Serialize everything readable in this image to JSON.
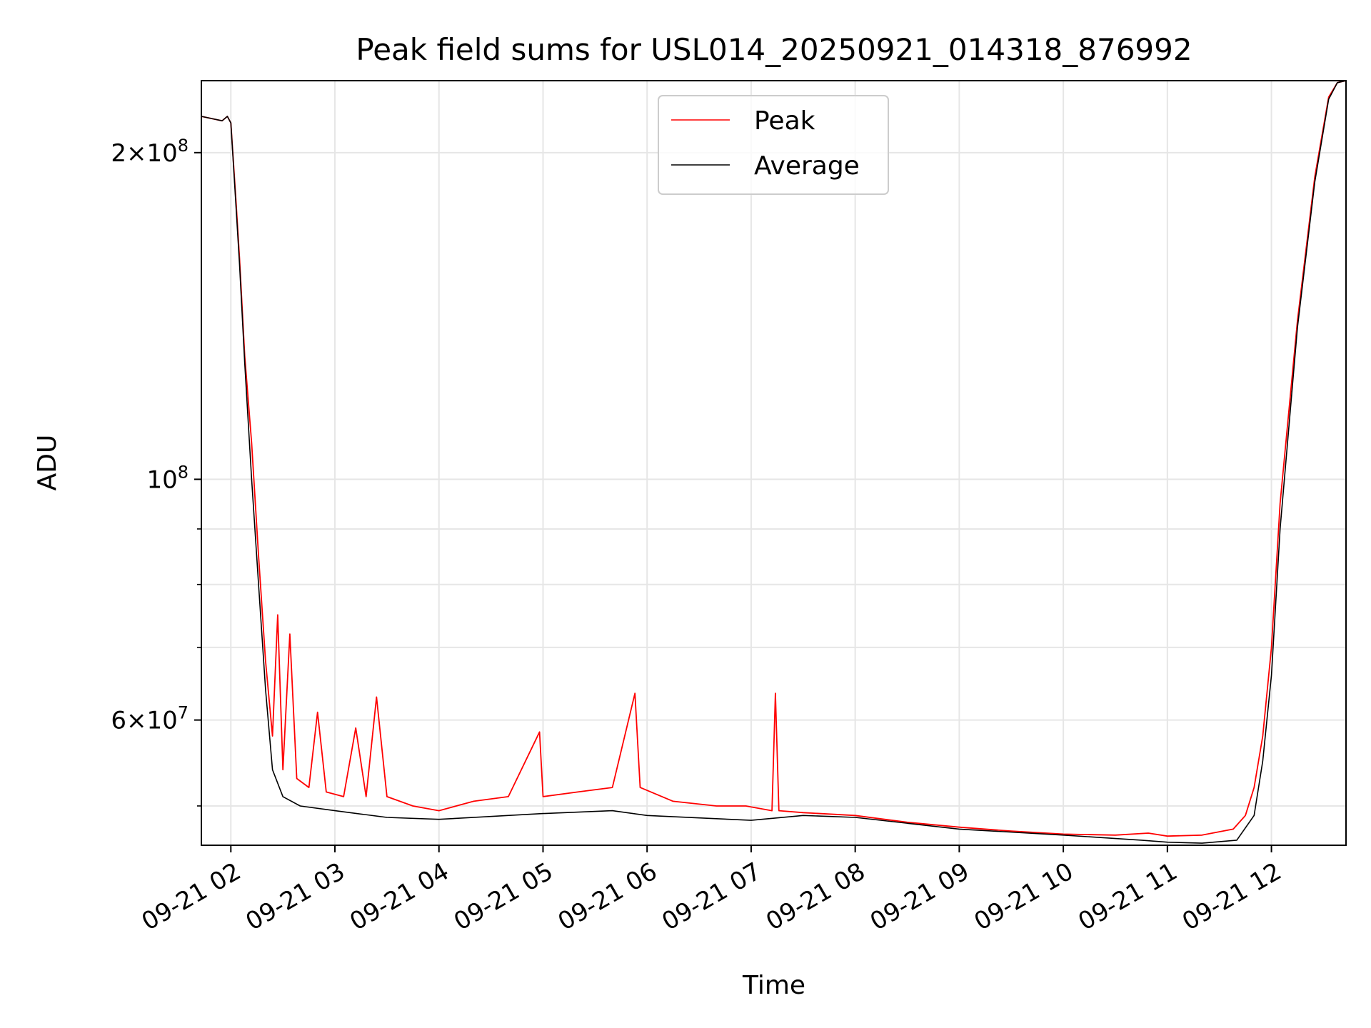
{
  "chart_data": {
    "type": "line",
    "title": "Peak field sums for USL014_20250921_014318_876992",
    "xlabel": "Time",
    "ylabel": "ADU",
    "y_scale": "log",
    "ylim": [
      46000000,
      233000000
    ],
    "x_tick_labels": [
      "09-21 02",
      "09-21 03",
      "09-21 04",
      "09-21 05",
      "09-21 06",
      "09-21 07",
      "09-21 08",
      "09-21 09",
      "09-21 10",
      "09-21 11",
      "09-21 12"
    ],
    "x_tick_times": [
      "2025-09-21 02:00",
      "2025-09-21 03:00",
      "2025-09-21 04:00",
      "2025-09-21 05:00",
      "2025-09-21 06:00",
      "2025-09-21 07:00",
      "2025-09-21 08:00",
      "2025-09-21 09:00",
      "2025-09-21 10:00",
      "2025-09-21 11:00",
      "2025-09-21 12:00"
    ],
    "xlim": [
      "2025-09-21 01:43",
      "2025-09-21 12:43"
    ],
    "y_major_ticks": [
      {
        "value": 60000000,
        "mant": "6",
        "exp": "7"
      },
      {
        "value": 100000000,
        "mant": "",
        "exp": "8"
      },
      {
        "value": 200000000,
        "mant": "2",
        "exp": "8"
      }
    ],
    "y_minor_ticks": [
      50000000,
      70000000,
      80000000,
      90000000
    ],
    "grid": true,
    "legend_position": "top-center",
    "series": [
      {
        "name": "Peak",
        "color": "#ff0000",
        "points": [
          [
            "2025-09-21 01:43",
            216000000
          ],
          [
            "2025-09-21 01:55",
            214000000
          ],
          [
            "2025-09-21 01:58",
            216000000
          ],
          [
            "2025-09-21 02:00",
            213000000
          ],
          [
            "2025-09-21 02:03",
            180000000
          ],
          [
            "2025-09-21 02:05",
            160000000
          ],
          [
            "2025-09-21 02:08",
            130000000
          ],
          [
            "2025-09-21 02:12",
            108000000
          ],
          [
            "2025-09-21 02:16",
            85000000
          ],
          [
            "2025-09-21 02:20",
            68000000
          ],
          [
            "2025-09-21 02:24",
            58000000
          ],
          [
            "2025-09-21 02:27",
            75000000
          ],
          [
            "2025-09-21 02:30",
            54000000
          ],
          [
            "2025-09-21 02:34",
            72000000
          ],
          [
            "2025-09-21 02:38",
            53000000
          ],
          [
            "2025-09-21 02:45",
            52000000
          ],
          [
            "2025-09-21 02:50",
            61000000
          ],
          [
            "2025-09-21 02:55",
            51500000
          ],
          [
            "2025-09-21 03:05",
            51000000
          ],
          [
            "2025-09-21 03:12",
            59000000
          ],
          [
            "2025-09-21 03:18",
            51000000
          ],
          [
            "2025-09-21 03:24",
            63000000
          ],
          [
            "2025-09-21 03:30",
            51000000
          ],
          [
            "2025-09-21 03:45",
            50000000
          ],
          [
            "2025-09-21 04:00",
            49500000
          ],
          [
            "2025-09-21 04:20",
            50500000
          ],
          [
            "2025-09-21 04:40",
            51000000
          ],
          [
            "2025-09-21 04:58",
            58500000
          ],
          [
            "2025-09-21 05:00",
            51000000
          ],
          [
            "2025-09-21 05:20",
            51500000
          ],
          [
            "2025-09-21 05:40",
            52000000
          ],
          [
            "2025-09-21 05:53",
            63500000
          ],
          [
            "2025-09-21 05:56",
            52000000
          ],
          [
            "2025-09-21 06:15",
            50500000
          ],
          [
            "2025-09-21 06:40",
            50000000
          ],
          [
            "2025-09-21 06:57",
            50000000
          ],
          [
            "2025-09-21 07:12",
            49500000
          ],
          [
            "2025-09-21 07:14",
            63500000
          ],
          [
            "2025-09-21 07:16",
            49500000
          ],
          [
            "2025-09-21 07:30",
            49300000
          ],
          [
            "2025-09-21 08:00",
            49000000
          ],
          [
            "2025-09-21 08:30",
            48300000
          ],
          [
            "2025-09-21 09:00",
            47800000
          ],
          [
            "2025-09-21 09:30",
            47400000
          ],
          [
            "2025-09-21 10:00",
            47100000
          ],
          [
            "2025-09-21 10:30",
            47000000
          ],
          [
            "2025-09-21 10:49",
            47200000
          ],
          [
            "2025-09-21 11:00",
            46900000
          ],
          [
            "2025-09-21 11:20",
            47000000
          ],
          [
            "2025-09-21 11:38",
            47600000
          ],
          [
            "2025-09-21 11:45",
            49000000
          ],
          [
            "2025-09-21 11:50",
            52000000
          ],
          [
            "2025-09-21 11:55",
            58000000
          ],
          [
            "2025-09-21 12:00",
            70000000
          ],
          [
            "2025-09-21 12:05",
            95000000
          ],
          [
            "2025-09-21 12:15",
            140000000
          ],
          [
            "2025-09-21 12:25",
            190000000
          ],
          [
            "2025-09-21 12:33",
            225000000
          ],
          [
            "2025-09-21 12:38",
            232000000
          ],
          [
            "2025-09-21 12:43",
            233000000
          ]
        ]
      },
      {
        "name": "Average",
        "color": "#000000",
        "points": [
          [
            "2025-09-21 01:43",
            216000000
          ],
          [
            "2025-09-21 01:55",
            214000000
          ],
          [
            "2025-09-21 01:58",
            216000000
          ],
          [
            "2025-09-21 02:00",
            213000000
          ],
          [
            "2025-09-21 02:03",
            178000000
          ],
          [
            "2025-09-21 02:05",
            158000000
          ],
          [
            "2025-09-21 02:08",
            128000000
          ],
          [
            "2025-09-21 02:12",
            100000000
          ],
          [
            "2025-09-21 02:16",
            80000000
          ],
          [
            "2025-09-21 02:20",
            64000000
          ],
          [
            "2025-09-21 02:24",
            54000000
          ],
          [
            "2025-09-21 02:30",
            51000000
          ],
          [
            "2025-09-21 02:40",
            50000000
          ],
          [
            "2025-09-21 03:00",
            49500000
          ],
          [
            "2025-09-21 03:30",
            48800000
          ],
          [
            "2025-09-21 04:00",
            48600000
          ],
          [
            "2025-09-21 05:00",
            49200000
          ],
          [
            "2025-09-21 05:40",
            49500000
          ],
          [
            "2025-09-21 06:00",
            49000000
          ],
          [
            "2025-09-21 07:00",
            48500000
          ],
          [
            "2025-09-21 07:30",
            49000000
          ],
          [
            "2025-09-21 08:00",
            48800000
          ],
          [
            "2025-09-21 09:00",
            47600000
          ],
          [
            "2025-09-21 10:00",
            47000000
          ],
          [
            "2025-09-21 10:45",
            46500000
          ],
          [
            "2025-09-21 11:00",
            46300000
          ],
          [
            "2025-09-21 11:20",
            46200000
          ],
          [
            "2025-09-21 11:40",
            46500000
          ],
          [
            "2025-09-21 11:50",
            49000000
          ],
          [
            "2025-09-21 11:55",
            55000000
          ],
          [
            "2025-09-21 12:00",
            66000000
          ],
          [
            "2025-09-21 12:05",
            90000000
          ],
          [
            "2025-09-21 12:15",
            138000000
          ],
          [
            "2025-09-21 12:25",
            188000000
          ],
          [
            "2025-09-21 12:33",
            224000000
          ],
          [
            "2025-09-21 12:38",
            232000000
          ],
          [
            "2025-09-21 12:43",
            233000000
          ]
        ]
      }
    ]
  }
}
